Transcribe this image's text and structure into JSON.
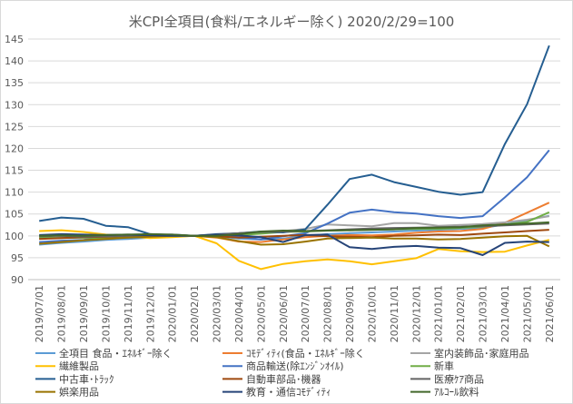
{
  "chart_data": {
    "type": "line",
    "title": "米CPI全項目(食料/エネルギー除く) 2020/2/29=100",
    "xlabel": "",
    "ylabel": "",
    "ylim": [
      90,
      145
    ],
    "y_ticks": [
      90,
      95,
      100,
      105,
      110,
      115,
      120,
      125,
      130,
      135,
      140,
      145
    ],
    "categories": [
      "2019/07/01",
      "2019/08/01",
      "2019/09/01",
      "2019/10/01",
      "2019/11/01",
      "2019/12/01",
      "2020/01/01",
      "2020/02/01",
      "2020/03/01",
      "2020/04/01",
      "2020/05/01",
      "2020/06/01",
      "2020/07/01",
      "2020/08/01",
      "2020/09/01",
      "2020/10/01",
      "2020/11/01",
      "2020/12/01",
      "2021/01/01",
      "2021/02/01",
      "2021/03/01",
      "2021/04/01",
      "2021/05/01",
      "2021/06/01"
    ],
    "grid": true,
    "legend_position": "bottom",
    "series": [
      {
        "name": "全項目 食品・ｴﾈﾙｷﾞｰ除く",
        "color": "#5b9bd5",
        "values": [
          98.0,
          98.4,
          98.7,
          99.1,
          99.3,
          99.6,
          99.8,
          100.0,
          99.9,
          99.4,
          99.2,
          99.4,
          100.0,
          100.4,
          100.6,
          100.8,
          101.0,
          101.2,
          101.4,
          101.6,
          101.8,
          102.6,
          103.6,
          104.6
        ]
      },
      {
        "name": "ｺﾓﾃﾞｨﾃｨ(食品・ｴﾈﾙｷﾞｰ除く",
        "color": "#ed7d31",
        "values": [
          99.5,
          99.6,
          99.7,
          99.6,
          99.8,
          99.9,
          100.0,
          100.0,
          99.6,
          98.7,
          98.6,
          99.2,
          99.7,
          100.0,
          100.2,
          100.1,
          100.3,
          100.7,
          101.0,
          101.1,
          101.6,
          103.0,
          105.3,
          107.6
        ]
      },
      {
        "name": "室内装飾品･家庭用品",
        "color": "#a5a5a5",
        "values": [
          99.4,
          99.6,
          99.8,
          99.9,
          99.9,
          99.9,
          100.1,
          100.0,
          100.3,
          100.6,
          100.9,
          101.1,
          101.6,
          102.6,
          102.4,
          102.2,
          102.9,
          102.9,
          102.3,
          102.5,
          102.7,
          103.1,
          103.7,
          104.5
        ]
      },
      {
        "name": "繊維製品",
        "color": "#ffc000",
        "values": [
          101.1,
          101.3,
          100.9,
          100.3,
          99.9,
          99.5,
          99.7,
          100.0,
          98.3,
          94.3,
          92.4,
          93.6,
          94.2,
          94.6,
          94.2,
          93.5,
          94.2,
          94.9,
          97.0,
          96.5,
          96.3,
          96.4,
          97.8,
          99.1
        ]
      },
      {
        "name": "商品輸送(除ｴﾝｼﾞﾝｵｲﾙ)",
        "color": "#4472c4",
        "values": [
          98.6,
          98.9,
          99.1,
          99.6,
          99.9,
          100.2,
          100.3,
          100.0,
          100.1,
          99.8,
          99.2,
          99.9,
          100.6,
          102.8,
          105.3,
          106.0,
          105.4,
          105.1,
          104.5,
          104.1,
          104.5,
          108.8,
          113.4,
          119.6
        ]
      },
      {
        "name": "新車",
        "color": "#70ad47",
        "values": [
          99.6,
          99.5,
          99.6,
          99.5,
          99.7,
          99.9,
          100.0,
          100.0,
          100.1,
          100.2,
          100.5,
          100.9,
          101.0,
          101.2,
          101.3,
          101.4,
          101.5,
          101.6,
          101.6,
          101.8,
          102.1,
          102.6,
          103.2,
          105.4
        ]
      },
      {
        "name": "中古車･ﾄﾗｯｸ",
        "color": "#255e91",
        "values": [
          103.4,
          104.2,
          103.9,
          102.3,
          102.0,
          100.4,
          100.2,
          100.0,
          100.4,
          100.6,
          101.0,
          100.8,
          101.5,
          107.1,
          113.0,
          114.0,
          112.3,
          111.2,
          110.1,
          109.4,
          110.0,
          121.0,
          130.1,
          143.5
        ]
      },
      {
        "name": "自動車部品･機器",
        "color": "#9e480e",
        "values": [
          99.3,
          99.5,
          99.7,
          99.8,
          100.0,
          100.1,
          100.2,
          100.0,
          99.9,
          99.6,
          99.8,
          100.0,
          100.2,
          99.9,
          99.8,
          99.7,
          100.0,
          100.1,
          100.3,
          100.2,
          100.5,
          100.8,
          101.1,
          101.4
        ]
      },
      {
        "name": "医療ｹｱ商品",
        "color": "#636363",
        "values": [
          99.9,
          100.0,
          99.8,
          99.9,
          100.0,
          100.1,
          100.2,
          100.0,
          100.3,
          100.6,
          100.9,
          101.0,
          101.1,
          101.3,
          101.5,
          101.7,
          101.8,
          101.9,
          102.0,
          102.1,
          102.2,
          102.4,
          102.6,
          102.8
        ]
      },
      {
        "name": "娯楽用品",
        "color": "#997300",
        "values": [
          98.2,
          98.6,
          99.0,
          99.3,
          99.6,
          99.8,
          100.0,
          100.0,
          99.7,
          98.8,
          98.0,
          98.1,
          98.7,
          99.4,
          99.5,
          99.6,
          99.4,
          99.4,
          99.2,
          99.3,
          99.6,
          99.9,
          100.0,
          97.6
        ]
      },
      {
        "name": "教育・通信ｺﾓﾃﾞｨﾃｨ",
        "color": "#264478",
        "values": [
          100.2,
          100.4,
          100.3,
          100.2,
          100.3,
          100.1,
          100.0,
          100.0,
          100.3,
          100.1,
          99.7,
          98.6,
          100.2,
          100.3,
          97.4,
          97.0,
          97.5,
          97.7,
          97.3,
          97.2,
          95.6,
          98.4,
          98.7,
          98.6
        ]
      },
      {
        "name": "ｱﾙｺｰﾙ飲料",
        "color": "#43682b",
        "values": [
          100.0,
          100.1,
          100.0,
          100.2,
          100.3,
          100.4,
          100.3,
          100.0,
          100.0,
          100.4,
          101.0,
          101.2,
          101.1,
          101.2,
          101.3,
          101.4,
          101.5,
          101.8,
          101.9,
          102.0,
          102.4,
          102.6,
          102.8,
          103.1
        ]
      }
    ]
  }
}
